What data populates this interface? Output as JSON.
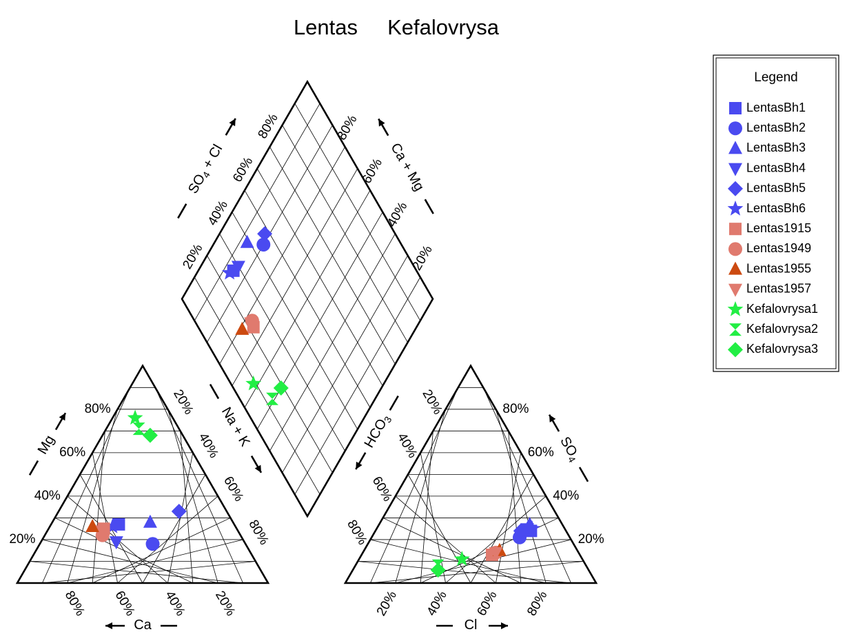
{
  "chart_data": {
    "type": "scatter",
    "subtype": "piper-trilinear-diagram",
    "title": "Lentas     Kefalovrysa",
    "cation_axes": {
      "left_label": "Mg",
      "bottom_label": "Ca",
      "right_label": "Na + K"
    },
    "anion_axes": {
      "left_label": "HCO",
      "left_label_sub": "3",
      "bottom_label": "Cl",
      "right_label": "SO",
      "right_label_sub": "4"
    },
    "diamond_axes": {
      "left_label": "SO",
      "left_label_sub": "4",
      "left_label_tail": " + Cl",
      "right_label": "Ca + Mg"
    },
    "tick_labels": [
      "20%",
      "40%",
      "60%",
      "80%"
    ],
    "grid": true,
    "legend": {
      "title": "Legend",
      "position": "top-right",
      "entries": [
        {
          "name": "LentasBh1",
          "marker": "square",
          "color": "#4a4af0"
        },
        {
          "name": "LentasBh2",
          "marker": "circle",
          "color": "#4a4af0"
        },
        {
          "name": "LentasBh3",
          "marker": "triangle-up",
          "color": "#4a4af0"
        },
        {
          "name": "LentasBh4",
          "marker": "triangle-down",
          "color": "#4a4af0"
        },
        {
          "name": "LentasBh5",
          "marker": "diamond",
          "color": "#4a4af0"
        },
        {
          "name": "LentasBh6",
          "marker": "star",
          "color": "#4a4af0"
        },
        {
          "name": "Lentas1915",
          "marker": "square",
          "color": "#e07a6e"
        },
        {
          "name": "Lentas1949",
          "marker": "circle",
          "color": "#e07a6e"
        },
        {
          "name": "Lentas1955",
          "marker": "triangle-up",
          "color": "#cc4a10"
        },
        {
          "name": "Lentas1957",
          "marker": "triangle-down",
          "color": "#e07a6e"
        },
        {
          "name": "Kefalovrysa1",
          "marker": "star",
          "color": "#22ee44"
        },
        {
          "name": "Kefalovrysa2",
          "marker": "hourglass",
          "color": "#22ee44"
        },
        {
          "name": "Kefalovrysa3",
          "marker": "diamond",
          "color": "#22ee44"
        }
      ]
    },
    "series": [
      {
        "name": "LentasBh1",
        "cation": {
          "Ca": 46,
          "Mg": 27
        },
        "anion": {
          "Cl": 62,
          "SO4": 24
        }
      },
      {
        "name": "LentasBh2",
        "cation": {
          "Ca": 37,
          "Mg": 18
        },
        "anion": {
          "Cl": 59,
          "SO4": 21
        }
      },
      {
        "name": "LentasBh3",
        "cation": {
          "Ca": 33,
          "Mg": 28
        },
        "anion": {
          "Cl": 60,
          "SO4": 27
        }
      },
      {
        "name": "LentasBh4",
        "cation": {
          "Ca": 51,
          "Mg": 19
        },
        "anion": {
          "Cl": 60,
          "SO4": 25
        }
      },
      {
        "name": "LentasBh5",
        "cation": {
          "Ca": 19,
          "Mg": 33
        },
        "anion": {
          "Cl": 58,
          "SO4": 24
        }
      },
      {
        "name": "LentasBh6",
        "cation": {
          "Ca": 49,
          "Mg": 26
        },
        "anion": {
          "Cl": 62,
          "SO4": 25
        }
      },
      {
        "name": "Lentas1915",
        "cation": {
          "Ca": 53,
          "Mg": 25
        },
        "anion": {
          "Cl": 52,
          "SO4": 13
        }
      },
      {
        "name": "Lentas1949",
        "cation": {
          "Ca": 55,
          "Mg": 22
        },
        "anion": {
          "Cl": 53,
          "SO4": 14
        }
      },
      {
        "name": "Lentas1955",
        "cation": {
          "Ca": 57,
          "Mg": 26
        },
        "anion": {
          "Cl": 54,
          "SO4": 15
        }
      },
      {
        "name": "Lentas1957",
        "cation": {
          "Ca": 54,
          "Mg": 24
        },
        "anion": {
          "Cl": 53,
          "SO4": 14
        }
      },
      {
        "name": "Kefalovrysa1",
        "cation": {
          "Ca": 15,
          "Mg": 76
        },
        "anion": {
          "Cl": 41,
          "SO4": 11
        }
      },
      {
        "name": "Kefalovrysa2",
        "cation": {
          "Ca": 16,
          "Mg": 71
        },
        "anion": {
          "Cl": 33,
          "SO4": 8
        }
      },
      {
        "name": "Kefalovrysa3",
        "cation": {
          "Ca": 13,
          "Mg": 68
        },
        "anion": {
          "Cl": 34,
          "SO4": 6
        }
      }
    ]
  }
}
